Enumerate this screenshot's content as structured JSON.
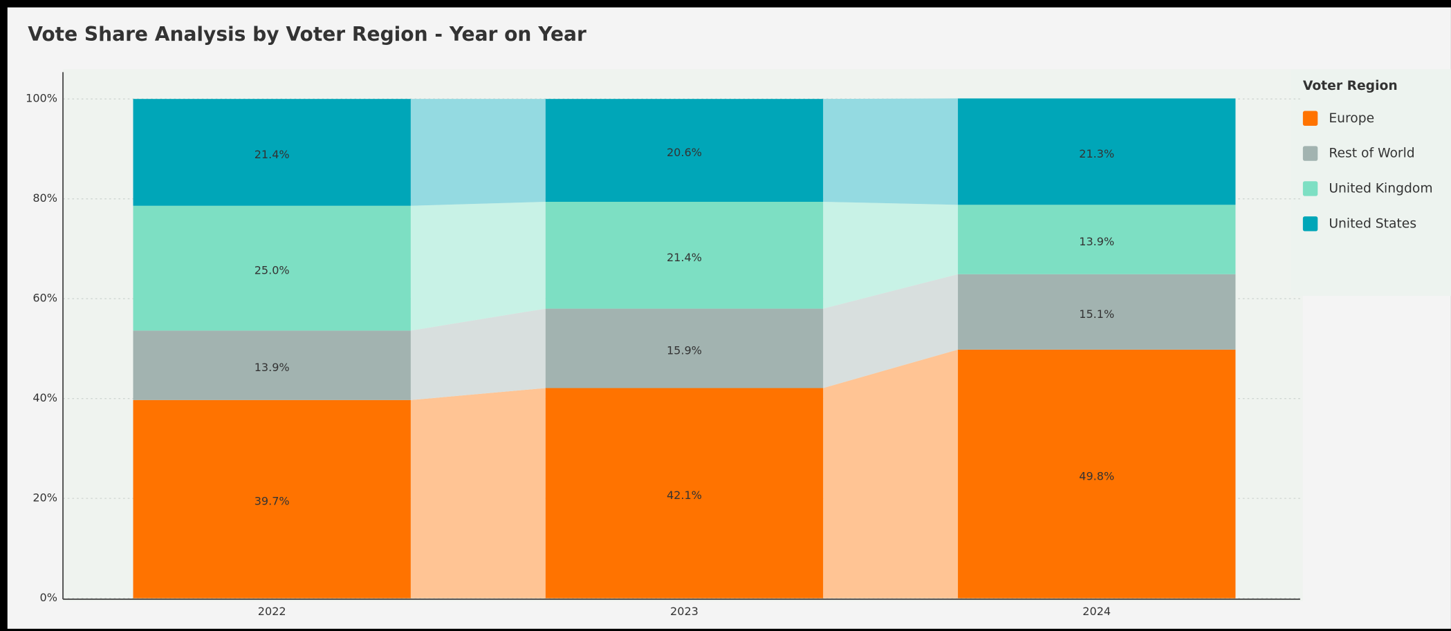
{
  "chart_data": {
    "type": "stacked_bar",
    "title": "Vote Share Analysis by Voter Region - Year on Year",
    "categories": [
      "2022",
      "2023",
      "2024"
    ],
    "legend_title": "Voter Region",
    "legend": "right",
    "grid": true,
    "ylim": [
      0,
      100
    ],
    "yticks": [
      {
        "value": 0,
        "label": "0%"
      },
      {
        "value": 20,
        "label": "20%"
      },
      {
        "value": 40,
        "label": "40%"
      },
      {
        "value": 60,
        "label": "60%"
      },
      {
        "value": 80,
        "label": "80%"
      },
      {
        "value": 100,
        "label": "100%"
      }
    ],
    "series": [
      {
        "name": "Europe",
        "color": "#ff7300",
        "values": [
          39.7,
          42.1,
          49.8
        ],
        "value_labels": [
          "39.7%",
          "42.1%",
          "49.8%"
        ]
      },
      {
        "name": "Rest of World",
        "color": "#a2b3b0",
        "values": [
          13.9,
          15.9,
          15.1
        ],
        "value_labels": [
          "13.9%",
          "15.9%",
          "15.1%"
        ]
      },
      {
        "name": "United Kingdom",
        "color": "#7ddfc3",
        "values": [
          25.0,
          21.4,
          13.9
        ],
        "value_labels": [
          "25.0%",
          "21.4%",
          "13.9%"
        ]
      },
      {
        "name": "United States",
        "color": "#00a6b8",
        "values": [
          21.4,
          20.6,
          21.3
        ],
        "value_labels": [
          "21.4%",
          "20.6%",
          "21.3%"
        ]
      }
    ]
  }
}
